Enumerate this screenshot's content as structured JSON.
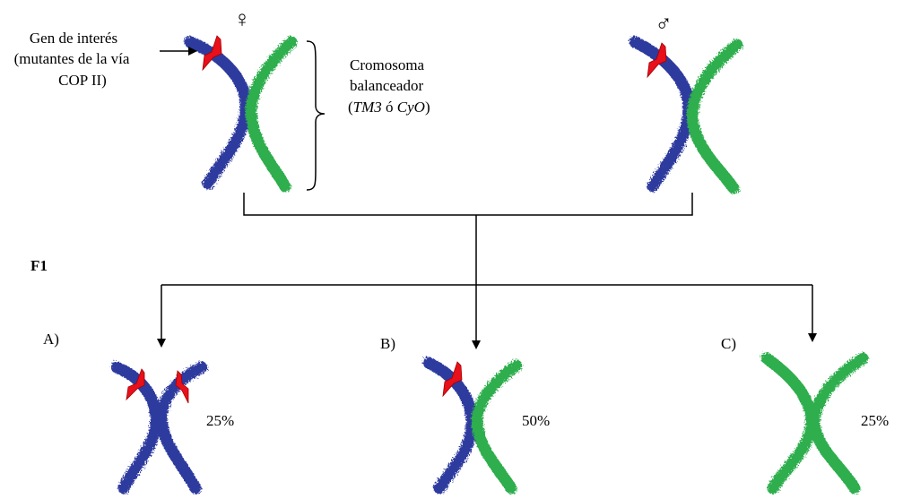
{
  "parents": {
    "female_symbol": "♀",
    "male_symbol": "♂"
  },
  "gene_label": {
    "lines": [
      "Gen de interés",
      "(mutantes de la vía",
      "COP II)"
    ]
  },
  "balancer_label": {
    "line1": "Cromosoma",
    "line2": "balanceador",
    "line3": {
      "open": "(",
      "gene1": "TM3",
      "sep": " ó ",
      "gene2": "CyO",
      "close": ")"
    }
  },
  "generation": "F1",
  "offspring": [
    {
      "letter": "A)",
      "percent": "25%"
    },
    {
      "letter": "B)",
      "percent": "50%"
    },
    {
      "letter": "C)",
      "percent": "25%"
    }
  ]
}
